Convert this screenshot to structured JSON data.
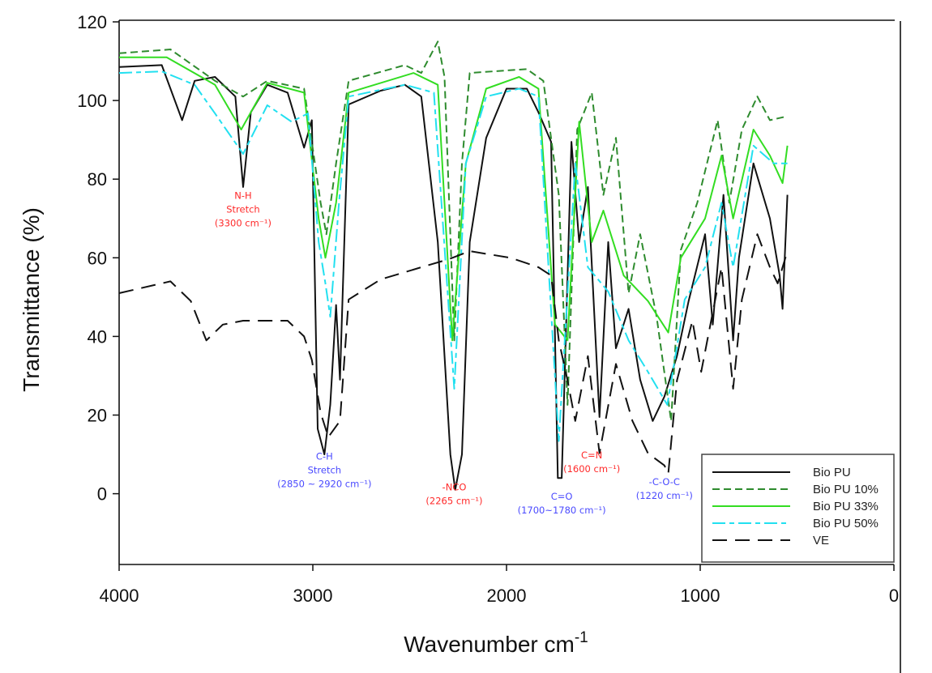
{
  "chart_data": {
    "type": "line",
    "title": "",
    "xlabel": "Wavenumber cm",
    "xlabel_superscript": "-1",
    "ylabel": "Transmittance (%)",
    "xlim": [
      4000,
      0
    ],
    "ylim": [
      -18,
      120
    ],
    "x_reversed": true,
    "grid": false,
    "legend_position": "bottom-right",
    "xticks": [
      "4000",
      "3000",
      "2000",
      "1000",
      "0"
    ],
    "xtick_values": [
      4000,
      3000,
      2000,
      1000,
      0
    ],
    "yticks": [
      "0",
      "20",
      "40",
      "60",
      "80",
      "100",
      "120"
    ],
    "ytick_values": [
      0,
      20,
      40,
      60,
      80,
      100,
      120
    ],
    "series": [
      {
        "name": "Bio PU",
        "color": "#111111",
        "dash": "solid",
        "x": [
          4000,
          3780,
          3675,
          3610,
          3505,
          3400,
          3360,
          3320,
          3235,
          3130,
          3045,
          3005,
          2975,
          2940,
          2910,
          2880,
          2860,
          2815,
          2650,
          2525,
          2440,
          2355,
          2290,
          2265,
          2230,
          2190,
          2105,
          2000,
          1895,
          1835,
          1770,
          1735,
          1715,
          1665,
          1625,
          1580,
          1520,
          1475,
          1435,
          1370,
          1310,
          1245,
          1185,
          1120,
          1060,
          975,
          935,
          880,
          830,
          800,
          725,
          640,
          590,
          575,
          550
        ],
        "y": [
          108.5,
          109,
          95,
          105,
          106,
          101,
          78,
          97,
          104,
          102,
          88,
          95,
          16.5,
          10,
          22.6,
          48,
          29,
          99,
          102.5,
          104,
          101,
          64,
          10,
          1,
          10,
          64,
          90.5,
          103,
          103,
          97,
          89.5,
          4,
          4,
          89.5,
          64,
          78,
          19.5,
          64,
          37,
          47,
          29,
          18.5,
          24.7,
          35,
          49,
          66,
          43,
          76,
          39,
          60,
          84,
          70,
          55.5,
          47,
          76
        ]
      },
      {
        "name": "Bio PU 10%",
        "color": "#2e8b2e",
        "dash": "dashed",
        "x": [
          4000,
          3735,
          3505,
          3360,
          3235,
          3045,
          2960,
          2930,
          2880,
          2815,
          2525,
          2440,
          2355,
          2320,
          2270,
          2230,
          2190,
          1895,
          1810,
          1730,
          1685,
          1635,
          1560,
          1500,
          1435,
          1370,
          1310,
          1225,
          1150,
          1100,
          1015,
          910,
          850,
          785,
          705,
          640,
          550
        ],
        "y": [
          112,
          113,
          105,
          101,
          105,
          103,
          74,
          66,
          84,
          105,
          109,
          107,
          115,
          106,
          39,
          84,
          107,
          108,
          105,
          76,
          22.6,
          92.6,
          102,
          76,
          90.5,
          51,
          66,
          45,
          18.5,
          62,
          74,
          95,
          74,
          92.6,
          101,
          95,
          96
        ]
      },
      {
        "name": "Bio PU 33%",
        "color": "#33dd22",
        "dash": "solid",
        "x": [
          4000,
          3755,
          3505,
          3370,
          3235,
          3045,
          2970,
          2935,
          2880,
          2815,
          2480,
          2355,
          2280,
          2210,
          2105,
          1935,
          1835,
          1750,
          1685,
          1625,
          1560,
          1500,
          1395,
          1270,
          1165,
          1100,
          975,
          890,
          830,
          725,
          640,
          575,
          550
        ],
        "y": [
          111,
          111,
          104,
          92.6,
          104.5,
          102,
          70,
          60,
          74,
          102,
          107,
          104,
          39,
          84,
          103,
          106,
          103,
          43,
          39,
          94.6,
          64,
          72,
          55.5,
          49,
          41,
          60,
          70,
          86,
          70,
          92.6,
          86,
          79,
          88.5
        ]
      },
      {
        "name": "Bio PU 50%",
        "color": "#22e0f0",
        "dash": "dashdot",
        "x": [
          4000,
          3780,
          3610,
          3505,
          3360,
          3235,
          3110,
          3025,
          2970,
          2935,
          2910,
          2865,
          2815,
          2525,
          2375,
          2270,
          2210,
          2105,
          1935,
          1835,
          1730,
          1645,
          1580,
          1475,
          1370,
          1270,
          1170,
          1080,
          975,
          890,
          830,
          725,
          620,
          550
        ],
        "y": [
          107,
          107.4,
          104,
          96.7,
          86.4,
          98.8,
          94.6,
          96.7,
          64,
          53.5,
          45,
          74,
          101,
          104,
          102,
          26.7,
          84,
          101,
          103,
          101,
          13.4,
          84,
          57.6,
          51.4,
          39,
          31,
          22.6,
          49.4,
          57.6,
          74,
          57.6,
          88.5,
          84,
          84
        ]
      },
      {
        "name": "VE",
        "color": "#111111",
        "dash": "longdash",
        "x": [
          4000,
          3735,
          3630,
          3550,
          3465,
          3360,
          3130,
          3045,
          3005,
          2960,
          2920,
          2860,
          2815,
          2650,
          2440,
          2295,
          2190,
          1980,
          1895,
          1835,
          1770,
          1730,
          1685,
          1645,
          1580,
          1520,
          1435,
          1350,
          1270,
          1185,
          1165,
          1120,
          1040,
          995,
          890,
          830,
          785,
          705,
          640,
          600,
          550
        ],
        "y": [
          51,
          54,
          49,
          39,
          43,
          44,
          44,
          40,
          34,
          20.6,
          14.4,
          18.5,
          49.4,
          54.5,
          57.6,
          59.7,
          61.7,
          60,
          58.6,
          57.6,
          55.5,
          39,
          28.8,
          18.5,
          35,
          10.3,
          33,
          18.5,
          10.3,
          7.2,
          5.1,
          28.8,
          44,
          31,
          57.6,
          26.7,
          49.4,
          66,
          57.6,
          53.5,
          61.7
        ]
      }
    ],
    "annotations": [
      {
        "lines": [
          "N-H",
          "Stretch",
          "(3300 cm⁻¹)"
        ],
        "color": "#ff2a2a",
        "x": 3360,
        "y": 75
      },
      {
        "lines": [
          "C-H",
          "Stretch",
          "(2850 ~ 2920 cm⁻¹)"
        ],
        "color": "#4a4aff",
        "x": 2940,
        "y": 8.7
      },
      {
        "lines": [
          "-NCO",
          "(2265 cm⁻¹)"
        ],
        "color": "#ff2a2a",
        "x": 2270,
        "y": 0.8
      },
      {
        "lines": [
          "C=O",
          "(1700~1780 cm⁻¹)"
        ],
        "color": "#4a4aff",
        "x": 1715,
        "y": -1.5
      },
      {
        "lines": [
          "C=N",
          "(1600 cm⁻¹)"
        ],
        "color": "#ff2a2a",
        "x": 1560,
        "y": 9
      },
      {
        "lines": [
          "-C-O-C",
          "(1220 cm⁻¹)"
        ],
        "color": "#4a4aff",
        "x": 1185,
        "y": 2.2
      }
    ]
  }
}
